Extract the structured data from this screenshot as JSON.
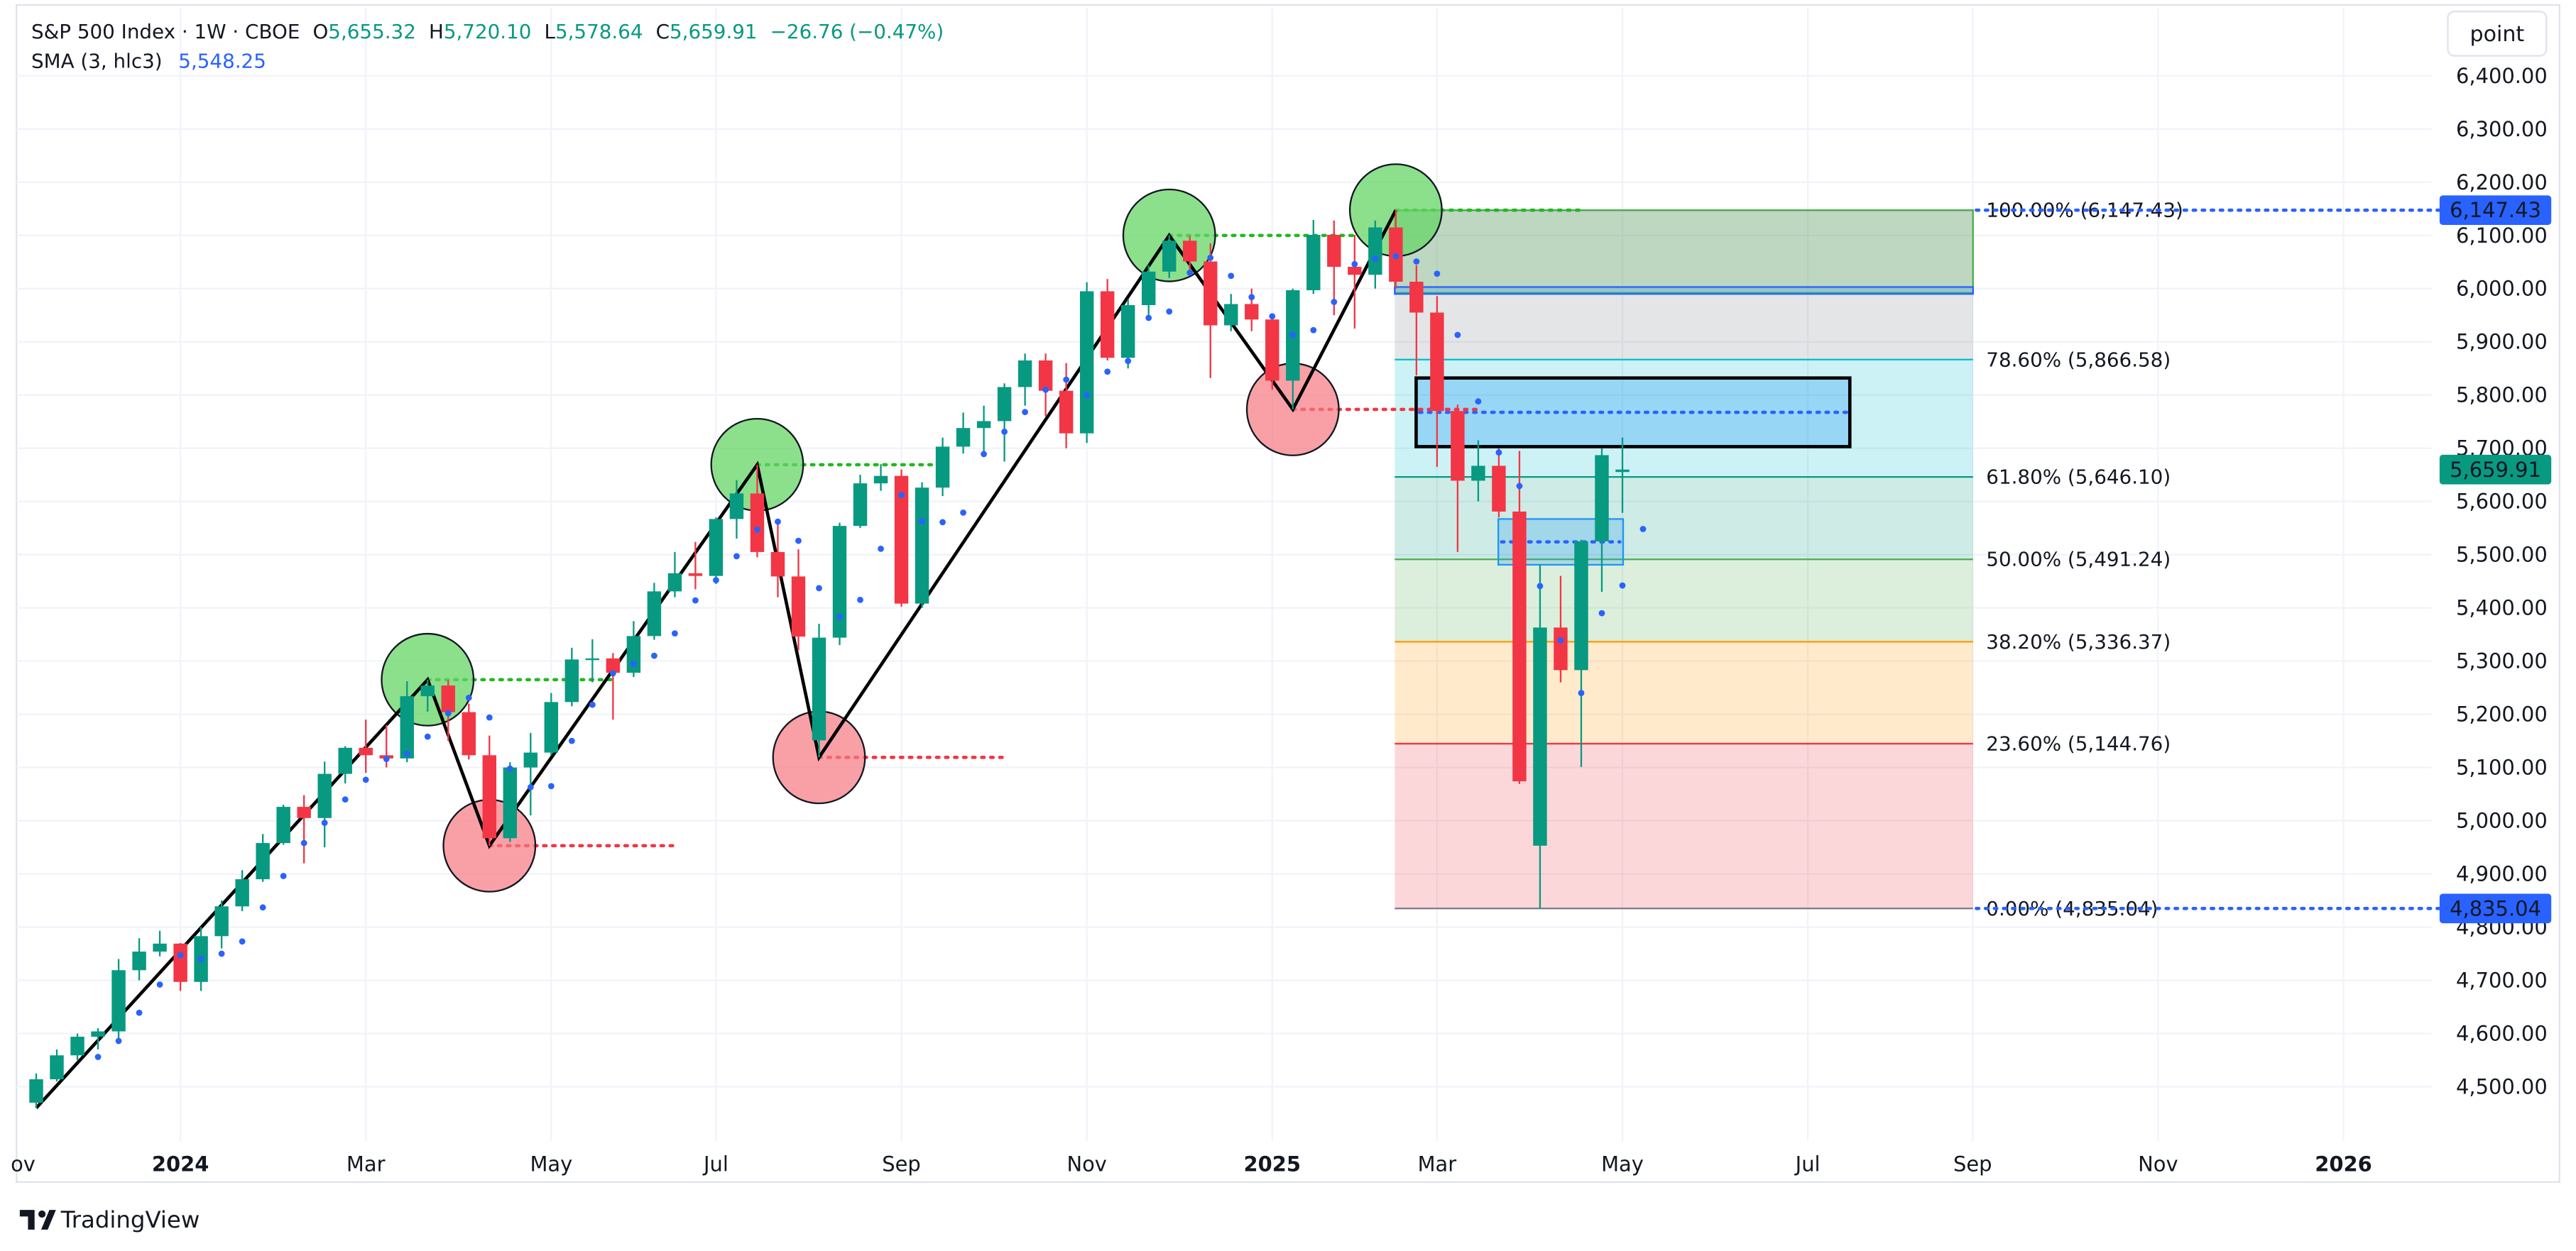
{
  "header": {
    "symbol": "S&P 500 Index · 1W · CBOE",
    "ohlc": [
      {
        "key": "O",
        "value": "5,655.32"
      },
      {
        "key": "H",
        "value": "5,720.10"
      },
      {
        "key": "L",
        "value": "5,578.64"
      },
      {
        "key": "C",
        "value": "5,659.91"
      }
    ],
    "change": "−26.76 (−0.47%)"
  },
  "toolbar": {
    "unit_button": "point"
  },
  "footer": {
    "brand": "TradingView"
  },
  "chart_data": {
    "type": "candlestick",
    "categories": [
      null,
      null,
      null,
      null,
      null,
      null,
      null,
      "2024",
      null,
      null,
      null,
      null,
      null,
      null,
      null,
      null,
      "Mar",
      null,
      null,
      null,
      null,
      null,
      null,
      null,
      null,
      "May",
      null,
      null,
      null,
      null,
      null,
      null,
      null,
      "Jul",
      null,
      null,
      null,
      null,
      null,
      null,
      null,
      null,
      "Sep",
      null,
      null,
      null,
      null,
      null,
      null,
      null,
      null,
      "Nov",
      null,
      null,
      null,
      null,
      null,
      null,
      null,
      null,
      "2025",
      null,
      null,
      null,
      null,
      null,
      null,
      null,
      "Mar",
      null,
      null,
      null,
      null,
      null,
      null,
      null,
      null,
      "May",
      null,
      null,
      null,
      null,
      null,
      null,
      null,
      null,
      "Jul",
      null,
      null,
      null,
      null,
      null,
      null,
      null,
      "Sep",
      null,
      null,
      null,
      null,
      null,
      null,
      null,
      null,
      "Nov",
      null,
      null,
      null,
      null,
      null,
      null,
      null,
      null,
      "2026",
      null,
      null,
      null,
      null
    ],
    "x_clipped_label": "ov",
    "open": [
      4470,
      4514,
      4559,
      4594,
      4604,
      4719,
      4754,
      4769,
      4697,
      4783,
      4839,
      4890,
      4958,
      5026,
      5005,
      5088,
      5137,
      5123,
      5117,
      5234,
      5254,
      5204,
      5123,
      4967,
      5100,
      5128,
      5223,
      5303,
      5305,
      5278,
      5347,
      5431,
      5465,
      5460,
      5567,
      5615,
      5505,
      5459,
      5151,
      5344,
      5554,
      5634,
      5648,
      5408,
      5626,
      5703,
      5738,
      5751,
      5815,
      5865,
      5808,
      5728,
      5995,
      5870,
      5969,
      6032,
      6090,
      6051,
      5931,
      5971,
      5942,
      5827,
      5997,
      6101,
      6041,
      6026,
      6115,
      6013,
      5955,
      5770,
      5639,
      5667,
      5581,
      4953,
      5363,
      5283,
      5525,
      5655.32,
      null,
      null,
      null,
      null,
      null,
      null,
      null,
      null,
      null,
      null,
      null,
      null,
      null,
      null,
      null,
      null,
      null,
      null,
      null,
      null,
      null,
      null,
      null,
      null,
      null,
      null,
      null,
      null,
      null,
      null,
      null,
      null,
      null,
      null,
      null,
      null,
      null,
      null,
      null
    ],
    "high": [
      4525,
      4570,
      4600,
      4610,
      4740,
      4779,
      4793,
      4770,
      4800,
      4850,
      4907,
      4975,
      5030,
      5048,
      5111,
      5140,
      5190,
      5180,
      5262,
      5265,
      5264,
      5220,
      5160,
      5110,
      5165,
      5240,
      5325,
      5341,
      5315,
      5375,
      5447,
      5505,
      5524,
      5570,
      5640,
      5669,
      5565,
      5510,
      5370,
      5560,
      5650,
      5670,
      5660,
      5636,
      5720,
      5767,
      5780,
      5822,
      5878,
      5878,
      5860,
      6012,
      6018,
      5980,
      6044,
      6100,
      6099,
      6085,
      5990,
      6000,
      5950,
      6000,
      6129,
      6128,
      6101,
      6128,
      6147.43,
      6044,
      5986,
      5782,
      5715,
      5700,
      5695,
      5481,
      5460,
      5528,
      5700,
      5720.1,
      null,
      null,
      null,
      null,
      null,
      null,
      null,
      null,
      null,
      null,
      null,
      null,
      null,
      null,
      null,
      null,
      null,
      null,
      null,
      null,
      null,
      null,
      null,
      null,
      null,
      null,
      null,
      null,
      null,
      null,
      null,
      null,
      null,
      null,
      null,
      null,
      null,
      null,
      null
    ],
    "low": [
      4460,
      4510,
      4550,
      4570,
      4590,
      4700,
      4745,
      4680,
      4680,
      4760,
      4830,
      4885,
      4955,
      4920,
      4950,
      5070,
      5090,
      5100,
      5110,
      5205,
      5150,
      5115,
      4953,
      4960,
      5010,
      5123,
      5215,
      5260,
      5190,
      5270,
      5340,
      5420,
      5435,
      5445,
      5530,
      5495,
      5420,
      5320,
      5119,
      5330,
      5550,
      5620,
      5402,
      5400,
      5610,
      5690,
      5690,
      5675,
      5780,
      5760,
      5700,
      5710,
      5865,
      5850,
      5950,
      6020,
      6030,
      5832,
      5920,
      5920,
      5810,
      5773,
      5990,
      5950,
      5925,
      6000,
      6000,
      5837,
      5665,
      5505,
      5600,
      5570,
      5069,
      4835.04,
      5260,
      5101,
      5430,
      5578.64,
      null,
      null,
      null,
      null,
      null,
      null,
      null,
      null,
      null,
      null,
      null,
      null,
      null,
      null,
      null,
      null,
      null,
      null,
      null,
      null,
      null,
      null,
      null,
      null,
      null,
      null,
      null,
      null,
      null,
      null,
      null,
      null,
      null,
      null,
      null,
      null,
      null,
      null,
      null
    ],
    "close": [
      4514,
      4559,
      4594,
      4604,
      4719,
      4754,
      4769,
      4697,
      4783,
      4839,
      4890,
      4958,
      5026,
      5005,
      5088,
      5137,
      5123,
      5117,
      5234,
      5254,
      5204,
      5123,
      4967,
      5100,
      5128,
      5223,
      5303,
      5305,
      5278,
      5347,
      5431,
      5465,
      5460,
      5567,
      5615,
      5505,
      5459,
      5346,
      5344,
      5554,
      5634,
      5648,
      5408,
      5626,
      5703,
      5738,
      5751,
      5815,
      5865,
      5808,
      5728,
      5995,
      5870,
      5969,
      6032,
      6090,
      6051,
      5931,
      5971,
      5942,
      5827,
      5997,
      6101,
      6041,
      6026,
      6115,
      6013,
      5955,
      5770,
      5639,
      5667,
      5581,
      5074,
      5363,
      5283,
      5525,
      5687,
      5659.91,
      null,
      null,
      null,
      null,
      null,
      null,
      null,
      null,
      null,
      null,
      null,
      null,
      null,
      null,
      null,
      null,
      null,
      null,
      null,
      null,
      null,
      null,
      null,
      null,
      null,
      null,
      null,
      null,
      null,
      null,
      null,
      null,
      null,
      null,
      null,
      null,
      null,
      null,
      null
    ],
    "up_color": "#089981",
    "down_color": "#f23645",
    "sma": {
      "name": "SMA (3, hlc3)",
      "last_label": "5,548.25",
      "color": "#2962ff",
      "values": [
        null,
        null,
        null,
        4556,
        4586,
        4639,
        4692,
        4747,
        4740,
        4750,
        4773,
        4837,
        4896,
        4958,
        4996,
        5040,
        5077,
        5116,
        5126,
        5158,
        5202,
        5231,
        5194,
        5098,
        5063,
        5065,
        5150,
        5218,
        5277,
        5295,
        5310,
        5352,
        5414,
        5452,
        5497,
        5547,
        5562,
        5526,
        5437,
        5383,
        5415,
        5511,
        5612,
        5563,
        5561,
        5579,
        5689,
        5731,
        5768,
        5810,
        5829,
        5800,
        5844,
        5864,
        5945,
        5957,
        6030,
        6058,
        6024,
        5984,
        5948,
        5913,
        5922,
        5975,
        6046,
        6056,
        6061,
        6051,
        6028,
        5913,
        5788,
        5692,
        5629,
        5441,
        5339,
        5240,
        5390,
        5442,
        5548.25,
        null,
        null,
        null,
        null,
        null,
        null,
        null,
        null,
        null,
        null,
        null,
        null,
        null,
        null,
        null,
        null,
        null,
        null,
        null,
        null,
        null,
        null,
        null,
        null,
        null,
        null,
        null,
        null,
        null,
        null,
        null,
        null,
        null,
        null,
        null,
        null,
        null,
        null
      ]
    },
    "zigzag": {
      "color": "#000000",
      "values": [
        4460,
        5265,
        4953,
        5669,
        5119,
        6100,
        5773,
        6147.43
      ]
    },
    "fib": {
      "levels": [
        {
          "value": 6147.43,
          "label": "100.00% (6,147.43)",
          "color": "#787b86"
        },
        {
          "value": 5866.58,
          "label": "78.60% (5,866.58)",
          "color": "#00bcd4"
        },
        {
          "value": 5646.1,
          "label": "61.80% (5,646.10)",
          "color": "#089981"
        },
        {
          "value": 5491.24,
          "label": "50.00% (5,491.24)",
          "color": "#4caf50"
        },
        {
          "value": 5336.37,
          "label": "38.20% (5,336.37)",
          "color": "#ff9800"
        },
        {
          "value": 5144.76,
          "label": "23.60% (5,144.76)",
          "color": "#f23645"
        },
        {
          "value": 4835.04,
          "label": "0.00% (4,835.04)",
          "color": "#787b86"
        }
      ]
    },
    "zones": [
      {
        "top": 6147.43,
        "bottom": 5992,
        "fill": "rgba(76,175,80,0.25)",
        "stroke": "#4caf50",
        "midline": false
      },
      {
        "top": 6003,
        "bottom": 5990,
        "fill": "rgba(33,150,243,0.25)",
        "stroke": "#2962ff",
        "midline": false
      },
      {
        "top": 5832,
        "bottom": 5703,
        "fill": "rgba(33,150,243,0.3)",
        "stroke": "#000000",
        "midline": true
      },
      {
        "top": 5567,
        "bottom": 5481,
        "fill": "rgba(33,150,243,0.25)",
        "stroke": "#2196f3",
        "midline": true
      }
    ],
    "price_labels": [
      {
        "value": 6147.43,
        "label": "6,147.43",
        "color": "#2962ff",
        "dotted": true
      },
      {
        "value": 5659.91,
        "label": "5,659.91",
        "color": "#089981",
        "dotted": false
      },
      {
        "value": 4835.04,
        "label": "4,835.04",
        "color": "#2962ff",
        "dotted": true
      }
    ],
    "ylim": [
      4398,
      6527
    ],
    "yticks": [
      {
        "value": 4500,
        "label": "4,500.00"
      },
      {
        "value": 4600,
        "label": "4,600.00"
      },
      {
        "value": 4700,
        "label": "4,700.00"
      },
      {
        "value": 4800,
        "label": "4,800.00"
      },
      {
        "value": 4900,
        "label": "4,900.00"
      },
      {
        "value": 5000,
        "label": "5,000.00"
      },
      {
        "value": 5100,
        "label": "5,100.00"
      },
      {
        "value": 5200,
        "label": "5,200.00"
      },
      {
        "value": 5300,
        "label": "5,300.00"
      },
      {
        "value": 5400,
        "label": "5,400.00"
      },
      {
        "value": 5500,
        "label": "5,500.00"
      },
      {
        "value": 5600,
        "label": "5,600.00"
      },
      {
        "value": 5700,
        "label": "5,700.00"
      },
      {
        "value": 5800,
        "label": "5,800.00"
      },
      {
        "value": 5900,
        "label": "5,900.00"
      },
      {
        "value": 6000,
        "label": "6,000.00"
      },
      {
        "value": 6100,
        "label": "6,100.00"
      },
      {
        "value": 6200,
        "label": "6,200.00"
      },
      {
        "value": 6300,
        "label": "6,300.00"
      },
      {
        "value": 6400,
        "label": "6,400.00"
      }
    ],
    "grid": true
  }
}
